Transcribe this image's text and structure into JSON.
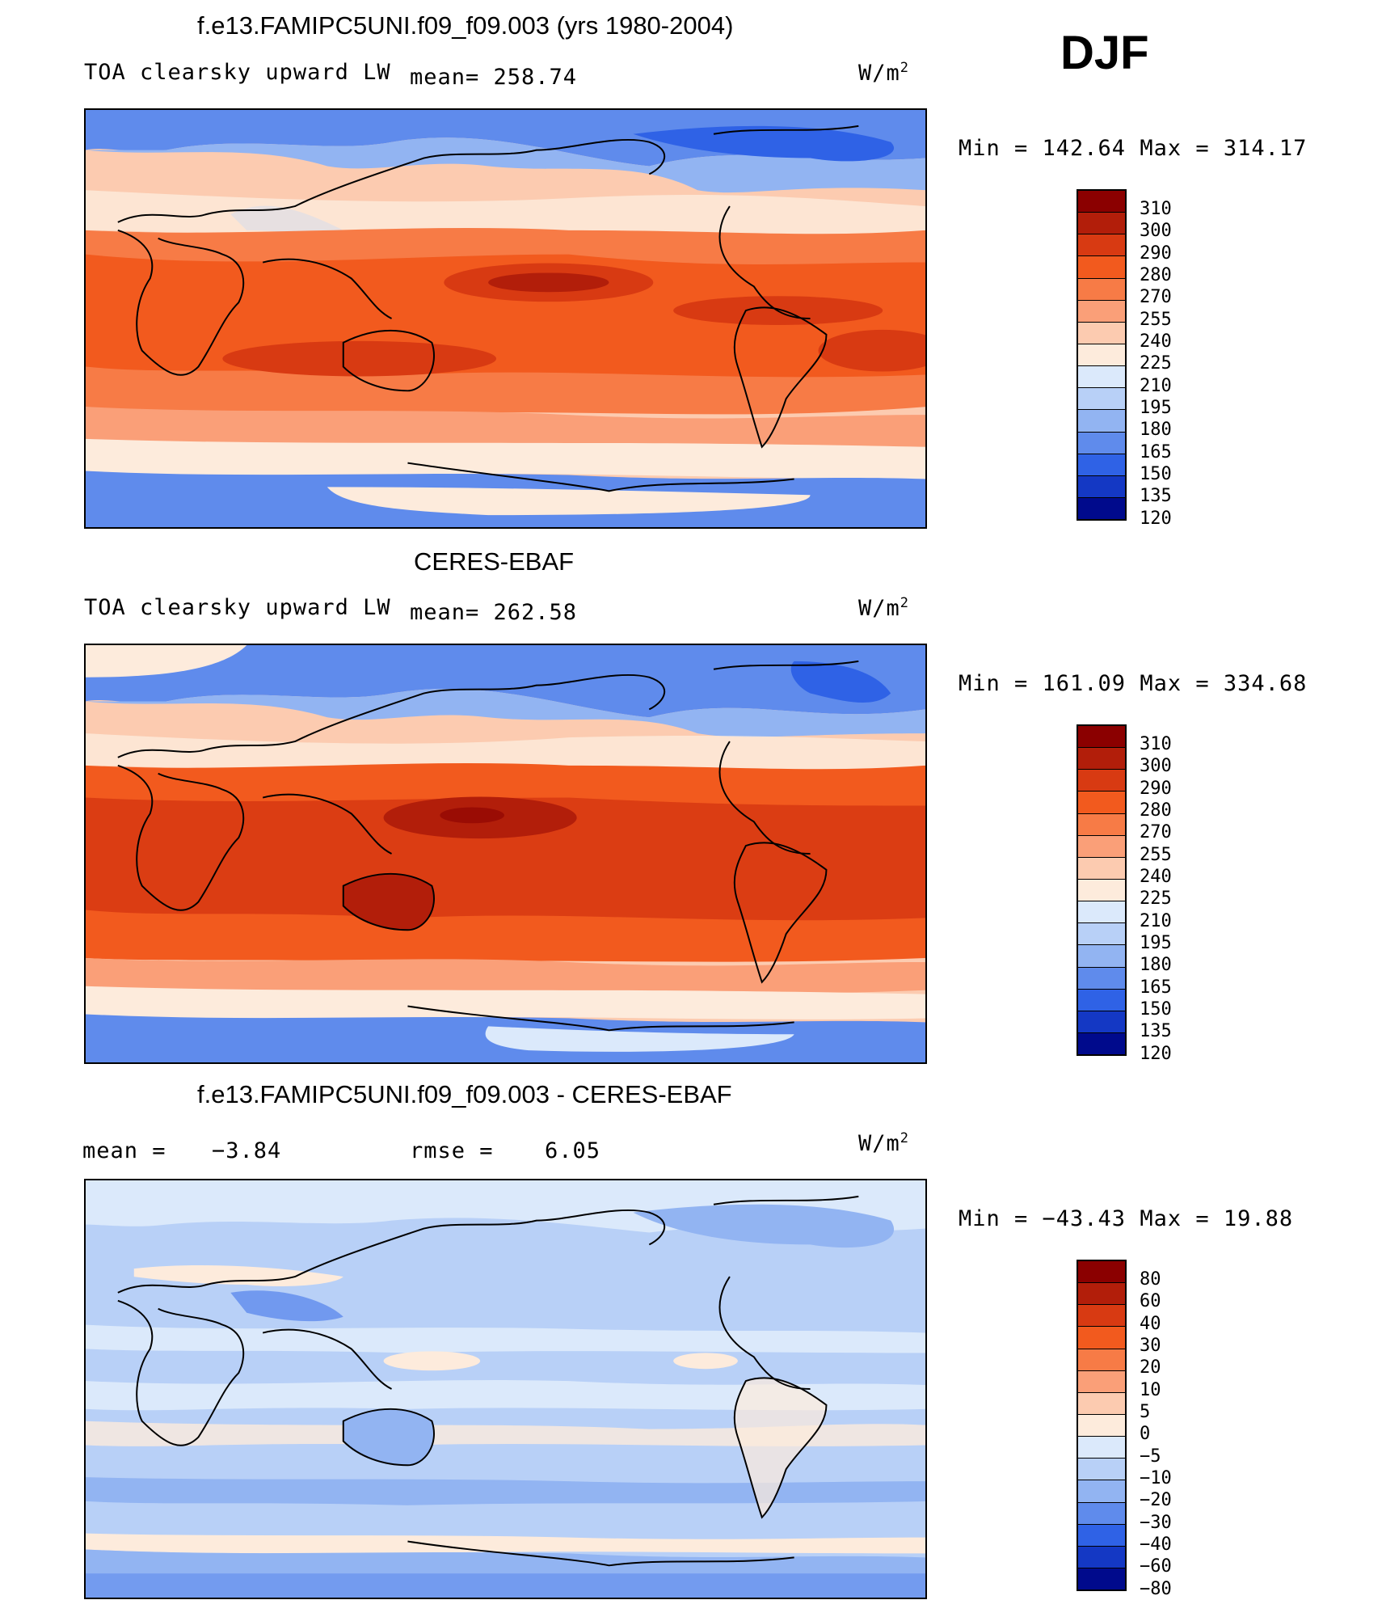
{
  "season": "DJF",
  "panels": [
    {
      "id": "model",
      "title": "f.e13.FAMIPC5UNI.f09_f09.003 (yrs 1980-2004)",
      "variable": "TOA clearsky upward LW",
      "mean": "mean= 258.74",
      "units": "W/m",
      "units_sup": "2",
      "minmax": "Min = 142.64 Max = 314.17",
      "levels": [
        "310",
        "300",
        "290",
        "280",
        "270",
        "255",
        "240",
        "225",
        "210",
        "195",
        "180",
        "165",
        "150",
        "135",
        "120"
      ]
    },
    {
      "id": "obs",
      "title": "CERES-EBAF",
      "variable": "TOA clearsky upward LW",
      "mean": "mean= 262.58",
      "units": "W/m",
      "units_sup": "2",
      "minmax": "Min = 161.09 Max = 334.68",
      "levels": [
        "310",
        "300",
        "290",
        "280",
        "270",
        "255",
        "240",
        "225",
        "210",
        "195",
        "180",
        "165",
        "150",
        "135",
        "120"
      ]
    },
    {
      "id": "diff",
      "title": "f.e13.FAMIPC5UNI.f09_f09.003 - CERES-EBAF",
      "mean_label": "mean =",
      "mean_value": "−3.84",
      "rmse_label": "rmse =",
      "rmse_value": "6.05",
      "units": "W/m",
      "units_sup": "2",
      "minmax": "Min = −43.43 Max =  19.88",
      "levels": [
        "80",
        "60",
        "40",
        "30",
        "20",
        "10",
        "5",
        "0",
        "−5",
        "−10",
        "−20",
        "−30",
        "−40",
        "−60",
        "−80"
      ]
    }
  ],
  "colors": {
    "abs_scale": [
      "#8b0000",
      "#b21e0a",
      "#d83a12",
      "#f25a1e",
      "#f77b46",
      "#fa9f78",
      "#fccbb0",
      "#fdebdc",
      "#dbe9fb",
      "#b8d0f7",
      "#92b4f2",
      "#5f8bec",
      "#2f62e6",
      "#1438c4",
      "#000a8c"
    ],
    "diff_scale": [
      "#8b0000",
      "#b21e0a",
      "#d83a12",
      "#f25a1e",
      "#f77b46",
      "#fa9f78",
      "#fccbb0",
      "#fdebdc",
      "#dbe9fb",
      "#b8d0f7",
      "#92b4f2",
      "#5f8bec",
      "#2f62e6",
      "#1438c4",
      "#000a8c"
    ]
  }
}
